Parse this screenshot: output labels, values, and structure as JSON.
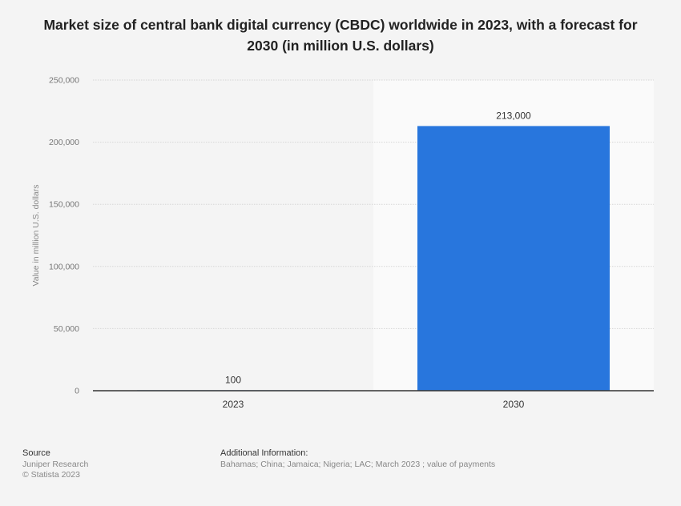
{
  "chart_data": {
    "type": "bar",
    "title": "Market size of central bank digital currency (CBDC) worldwide in 2023, with a forecast for 2030 (in million U.S. dollars)",
    "xlabel": "",
    "ylabel": "Value in million U.S. dollars",
    "categories": [
      "2023",
      "2030"
    ],
    "values": [
      100,
      213000
    ],
    "value_labels": [
      "100",
      "213,000"
    ],
    "ylim": [
      0,
      250000
    ],
    "yticks": [
      0,
      50000,
      100000,
      150000,
      200000,
      250000
    ],
    "ytick_labels": [
      "0",
      "50,000",
      "100,000",
      "150,000",
      "200,000",
      "250,000"
    ],
    "grid": true,
    "forecast_shading": "2030",
    "bar_color": "#2876dd",
    "axis_color": "#333333"
  },
  "footer": {
    "source_label": "Source",
    "source_lines": [
      "Juniper Research",
      "© Statista 2023"
    ],
    "info_label": "Additional Information:",
    "info_text": "Bahamas; China; Jamaica; Nigeria; LAC; March 2023 ; value of payments"
  }
}
